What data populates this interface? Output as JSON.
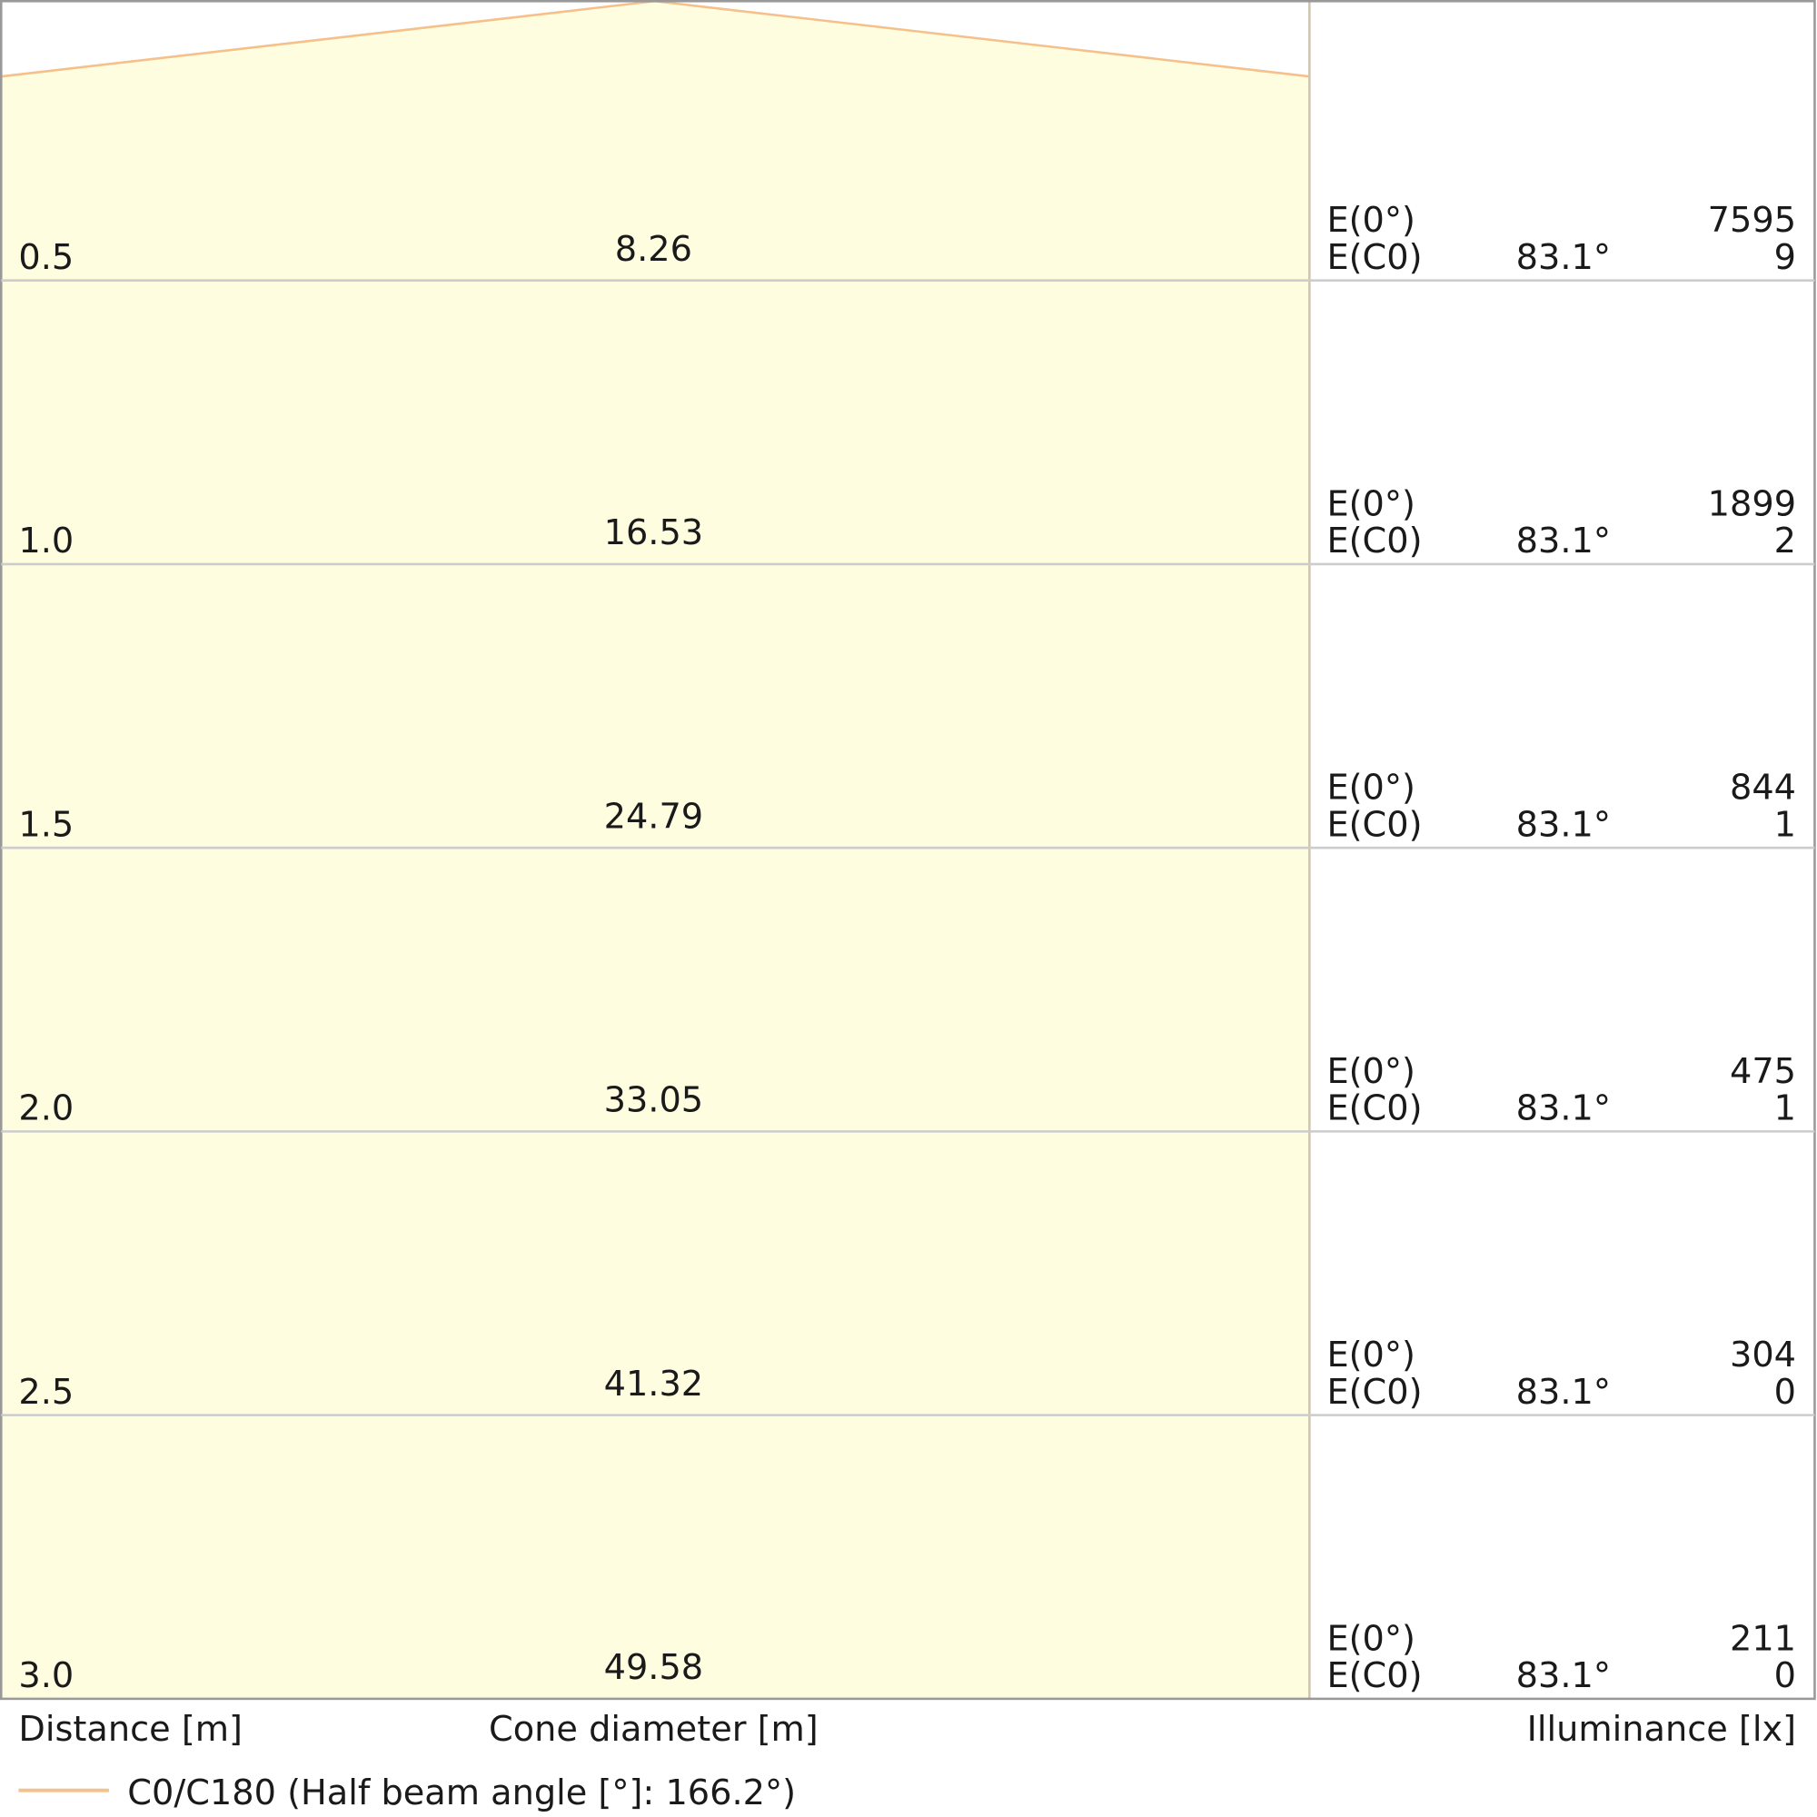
{
  "rows": [
    {
      "distance": "0.5",
      "diameter": "8.26",
      "e0_label": "E(0°)",
      "e0": "7595",
      "ec0_label": "E(C0)",
      "ec0_angle": "83.1°",
      "ec0": "9"
    },
    {
      "distance": "1.0",
      "diameter": "16.53",
      "e0_label": "E(0°)",
      "e0": "1899",
      "ec0_label": "E(C0)",
      "ec0_angle": "83.1°",
      "ec0": "2"
    },
    {
      "distance": "1.5",
      "diameter": "24.79",
      "e0_label": "E(0°)",
      "e0": "844",
      "ec0_label": "E(C0)",
      "ec0_angle": "83.1°",
      "ec0": "1"
    },
    {
      "distance": "2.0",
      "diameter": "33.05",
      "e0_label": "E(0°)",
      "e0": "475",
      "ec0_label": "E(C0)",
      "ec0_angle": "83.1°",
      "ec0": "1"
    },
    {
      "distance": "2.5",
      "diameter": "41.32",
      "e0_label": "E(0°)",
      "e0": "304",
      "ec0_label": "E(C0)",
      "ec0_angle": "83.1°",
      "ec0": "0"
    },
    {
      "distance": "3.0",
      "diameter": "49.58",
      "e0_label": "E(0°)",
      "e0": "211",
      "ec0_label": "E(C0)",
      "ec0_angle": "83.1°",
      "ec0": "0"
    }
  ],
  "footer": {
    "distance": "Distance [m]",
    "diameter": "Cone diameter [m]",
    "illuminance": "Illuminance [lx]"
  },
  "legend": {
    "label": "C0/C180 (Half beam angle [°]: 166.2°)"
  }
}
